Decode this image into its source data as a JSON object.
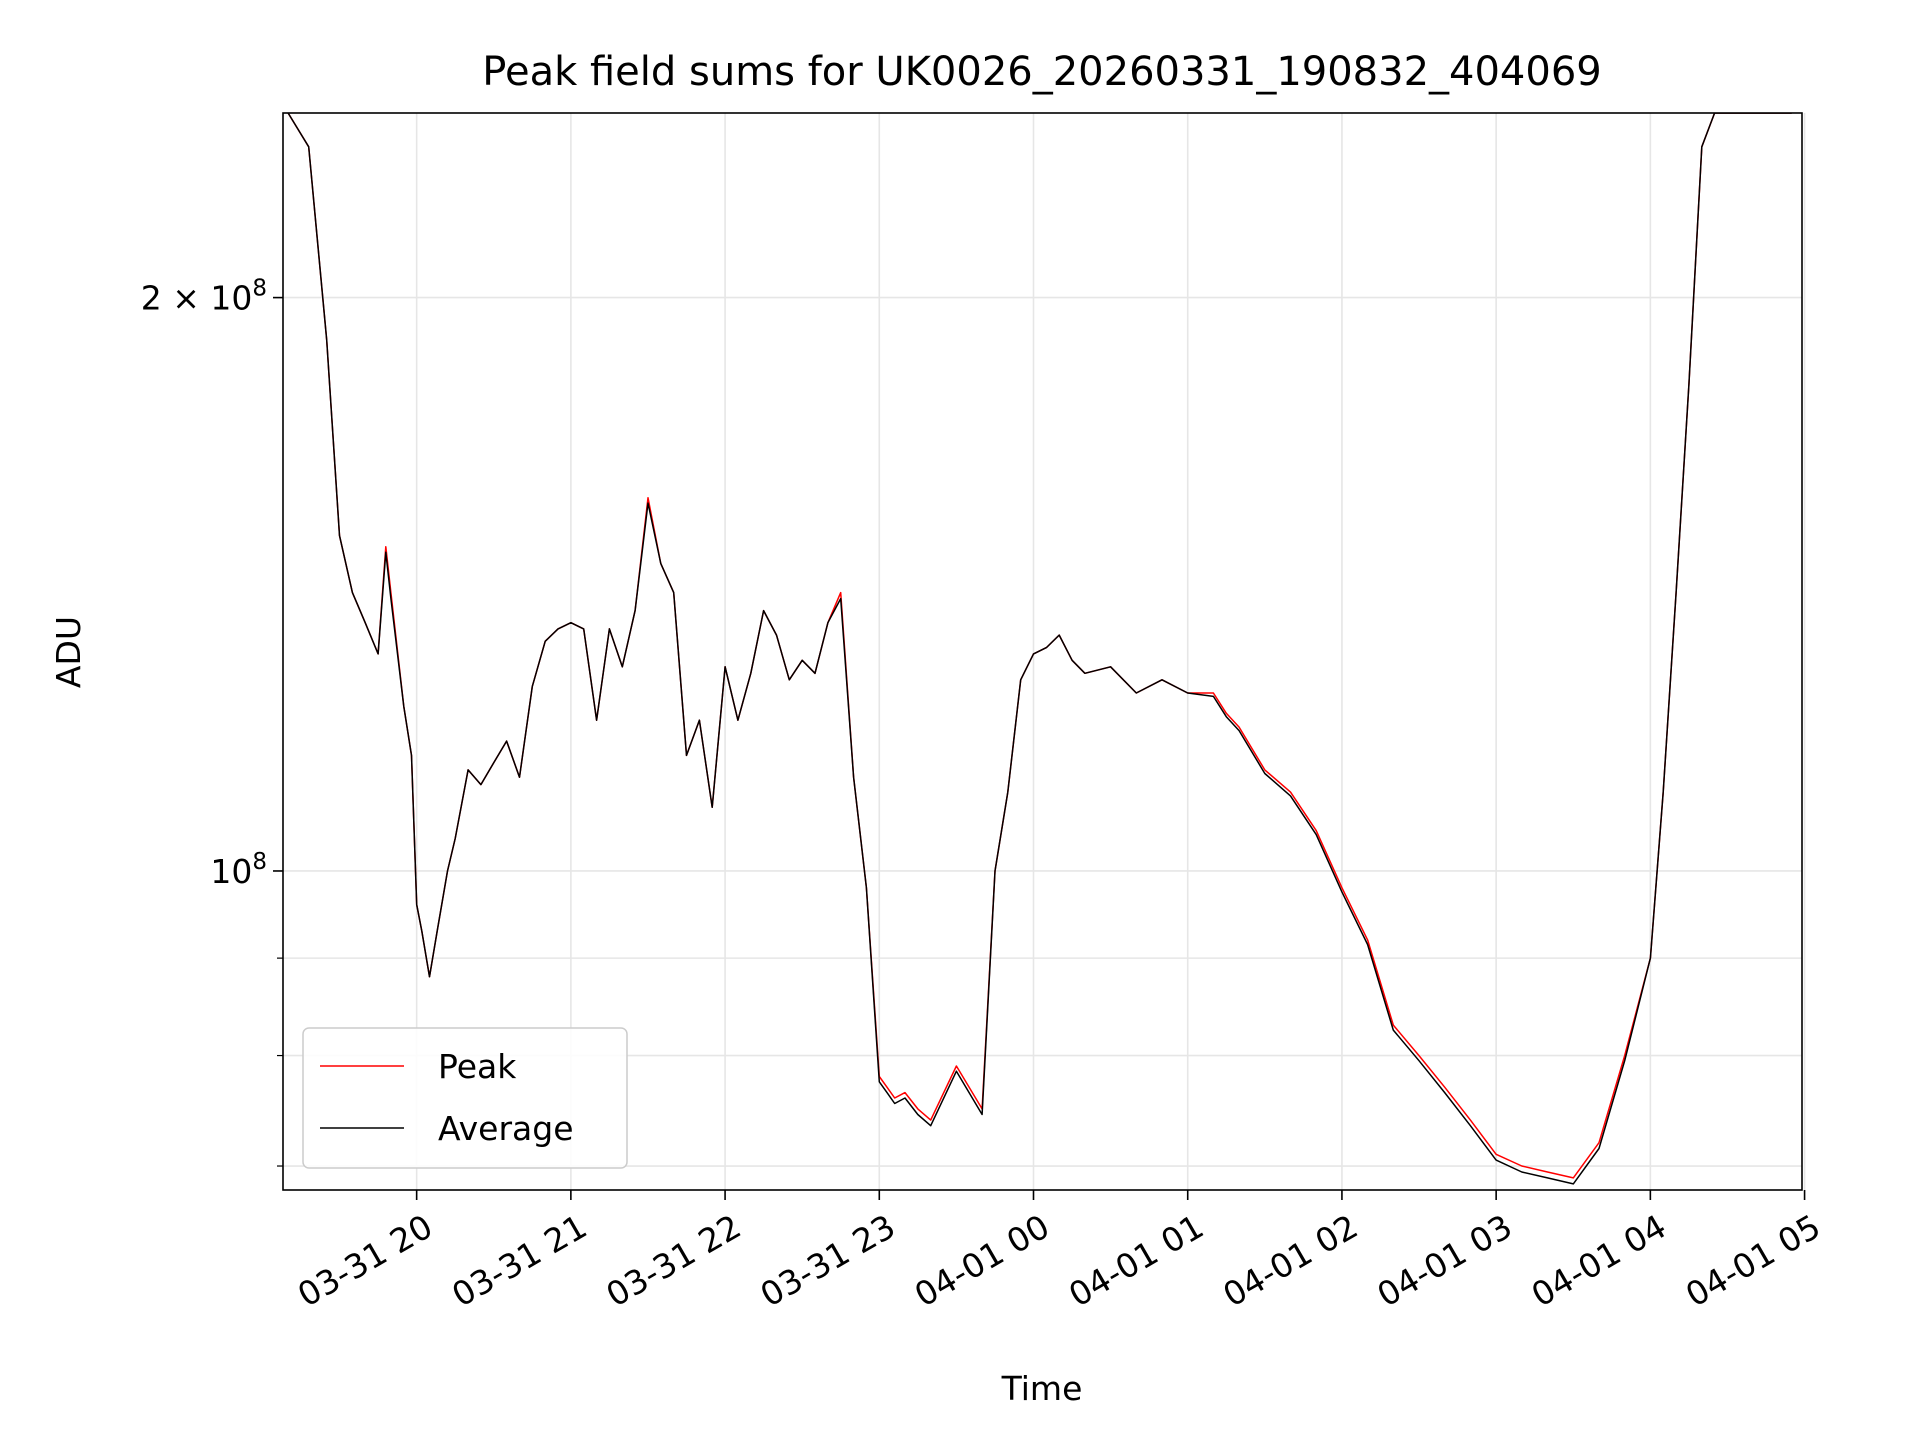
{
  "chart_data": {
    "type": "line",
    "title": "Peak field sums for UK0026_20260331_190832_404069",
    "xlabel": "Time",
    "ylabel": "ADU",
    "yscale": "log",
    "grid": true,
    "legend_position": "lower-left",
    "xlim": [
      "2026-03-31 19:08",
      "2026-04-01 04:59"
    ],
    "ylim": [
      68000000,
      250000000
    ],
    "x_ticks": [
      "03-31 20",
      "03-31 21",
      "03-31 22",
      "03-31 23",
      "04-01 00",
      "04-01 01",
      "04-01 02",
      "04-01 03",
      "04-01 04",
      "04-01 05"
    ],
    "y_ticks": [
      {
        "value": 100000000,
        "label_base": "10",
        "label_exp": "8"
      },
      {
        "value": 200000000,
        "label_base": "2 × 10",
        "label_exp": "8"
      }
    ],
    "y_minor_ticks": [
      70000000,
      80000000,
      90000000
    ],
    "series": [
      {
        "name": "Peak",
        "color": "#ff0000",
        "x": [
          "2026-03-31 19:10",
          "2026-03-31 19:18",
          "2026-03-31 19:25",
          "2026-03-31 19:30",
          "2026-03-31 19:35",
          "2026-03-31 19:40",
          "2026-03-31 19:45",
          "2026-03-31 19:48",
          "2026-03-31 19:50",
          "2026-03-31 19:55",
          "2026-03-31 19:58",
          "2026-03-31 20:00",
          "2026-03-31 20:02",
          "2026-03-31 20:05",
          "2026-03-31 20:08",
          "2026-03-31 20:12",
          "2026-03-31 20:15",
          "2026-03-31 20:20",
          "2026-03-31 20:25",
          "2026-03-31 20:30",
          "2026-03-31 20:35",
          "2026-03-31 20:40",
          "2026-03-31 20:45",
          "2026-03-31 20:50",
          "2026-03-31 20:55",
          "2026-03-31 21:00",
          "2026-03-31 21:05",
          "2026-03-31 21:10",
          "2026-03-31 21:15",
          "2026-03-31 21:20",
          "2026-03-31 21:25",
          "2026-03-31 21:30",
          "2026-03-31 21:35",
          "2026-03-31 21:40",
          "2026-03-31 21:45",
          "2026-03-31 21:50",
          "2026-03-31 21:55",
          "2026-03-31 22:00",
          "2026-03-31 22:05",
          "2026-03-31 22:10",
          "2026-03-31 22:15",
          "2026-03-31 22:20",
          "2026-03-31 22:25",
          "2026-03-31 22:30",
          "2026-03-31 22:35",
          "2026-03-31 22:40",
          "2026-03-31 22:45",
          "2026-03-31 22:50",
          "2026-03-31 22:55",
          "2026-03-31 23:00",
          "2026-03-31 23:03",
          "2026-03-31 23:06",
          "2026-03-31 23:10",
          "2026-03-31 23:15",
          "2026-03-31 23:20",
          "2026-03-31 23:30",
          "2026-03-31 23:40",
          "2026-03-31 23:45",
          "2026-03-31 23:50",
          "2026-03-31 23:55",
          "2026-04-01 00:00",
          "2026-04-01 00:05",
          "2026-04-01 00:10",
          "2026-04-01 00:15",
          "2026-04-01 00:20",
          "2026-04-01 00:30",
          "2026-04-01 00:40",
          "2026-04-01 00:50",
          "2026-04-01 01:00",
          "2026-04-01 01:10",
          "2026-04-01 01:15",
          "2026-04-01 01:20",
          "2026-04-01 01:30",
          "2026-04-01 01:40",
          "2026-04-01 01:50",
          "2026-04-01 02:00",
          "2026-04-01 02:10",
          "2026-04-01 02:20",
          "2026-04-01 02:30",
          "2026-04-01 02:40",
          "2026-04-01 02:50",
          "2026-04-01 03:00",
          "2026-04-01 03:10",
          "2026-04-01 03:20",
          "2026-04-01 03:30",
          "2026-04-01 03:40",
          "2026-04-01 03:50",
          "2026-04-01 04:00",
          "2026-04-01 04:05",
          "2026-04-01 04:10",
          "2026-04-01 04:15",
          "2026-04-01 04:20",
          "2026-04-01 04:25",
          "2026-04-01 04:30",
          "2026-04-01 04:35",
          "2026-04-01 04:40",
          "2026-04-01 04:45",
          "2026-04-01 04:50",
          "2026-04-01 04:55"
        ],
        "y": [
          250000000,
          240000000,
          190000000,
          150000000,
          140000000,
          135000000,
          130000000,
          148000000,
          140000000,
          122000000,
          115000000,
          96000000,
          93000000,
          88000000,
          93000000,
          100000000,
          104000000,
          113000000,
          111000000,
          114000000,
          117000000,
          112000000,
          125000000,
          132000000,
          134000000,
          135000000,
          134000000,
          120000000,
          134000000,
          128000000,
          137000000,
          157000000,
          145000000,
          140000000,
          115000000,
          120000000,
          108000000,
          128000000,
          120000000,
          127000000,
          137000000,
          133000000,
          126000000,
          129000000,
          127000000,
          135000000,
          140000000,
          112000000,
          98000000,
          78000000,
          77000000,
          76000000,
          76500000,
          75000000,
          74000000,
          79000000,
          75000000,
          100000000,
          110000000,
          126000000,
          130000000,
          131000000,
          133000000,
          129000000,
          127000000,
          128000000,
          124000000,
          126000000,
          124000000,
          124000000,
          121000000,
          119000000,
          113000000,
          110000000,
          105000000,
          98000000,
          92000000,
          83000000,
          80000000,
          77000000,
          74000000,
          71000000,
          70000000,
          69500000,
          69000000,
          72000000,
          80000000,
          90000000,
          110000000,
          140000000,
          180000000,
          240000000,
          250000000,
          250000000,
          250000000,
          250000000,
          250000000,
          250000000,
          250000000
        ]
      },
      {
        "name": "Average",
        "color": "#000000",
        "x": [
          "2026-03-31 19:10",
          "2026-03-31 19:18",
          "2026-03-31 19:25",
          "2026-03-31 19:30",
          "2026-03-31 19:35",
          "2026-03-31 19:40",
          "2026-03-31 19:45",
          "2026-03-31 19:48",
          "2026-03-31 19:50",
          "2026-03-31 19:55",
          "2026-03-31 19:58",
          "2026-03-31 20:00",
          "2026-03-31 20:02",
          "2026-03-31 20:05",
          "2026-03-31 20:08",
          "2026-03-31 20:12",
          "2026-03-31 20:15",
          "2026-03-31 20:20",
          "2026-03-31 20:25",
          "2026-03-31 20:30",
          "2026-03-31 20:35",
          "2026-03-31 20:40",
          "2026-03-31 20:45",
          "2026-03-31 20:50",
          "2026-03-31 20:55",
          "2026-03-31 21:00",
          "2026-03-31 21:05",
          "2026-03-31 21:10",
          "2026-03-31 21:15",
          "2026-03-31 21:20",
          "2026-03-31 21:25",
          "2026-03-31 21:30",
          "2026-03-31 21:35",
          "2026-03-31 21:40",
          "2026-03-31 21:45",
          "2026-03-31 21:50",
          "2026-03-31 21:55",
          "2026-03-31 22:00",
          "2026-03-31 22:05",
          "2026-03-31 22:10",
          "2026-03-31 22:15",
          "2026-03-31 22:20",
          "2026-03-31 22:25",
          "2026-03-31 22:30",
          "2026-03-31 22:35",
          "2026-03-31 22:40",
          "2026-03-31 22:45",
          "2026-03-31 22:50",
          "2026-03-31 22:55",
          "2026-03-31 23:00",
          "2026-03-31 23:03",
          "2026-03-31 23:06",
          "2026-03-31 23:10",
          "2026-03-31 23:15",
          "2026-03-31 23:20",
          "2026-03-31 23:30",
          "2026-03-31 23:40",
          "2026-03-31 23:45",
          "2026-03-31 23:50",
          "2026-03-31 23:55",
          "2026-04-01 00:00",
          "2026-04-01 00:05",
          "2026-04-01 00:10",
          "2026-04-01 00:15",
          "2026-04-01 00:20",
          "2026-04-01 00:30",
          "2026-04-01 00:40",
          "2026-04-01 00:50",
          "2026-04-01 01:00",
          "2026-04-01 01:10",
          "2026-04-01 01:15",
          "2026-04-01 01:20",
          "2026-04-01 01:30",
          "2026-04-01 01:40",
          "2026-04-01 01:50",
          "2026-04-01 02:00",
          "2026-04-01 02:10",
          "2026-04-01 02:20",
          "2026-04-01 02:30",
          "2026-04-01 02:40",
          "2026-04-01 02:50",
          "2026-04-01 03:00",
          "2026-04-01 03:10",
          "2026-04-01 03:20",
          "2026-04-01 03:30",
          "2026-04-01 03:40",
          "2026-04-01 03:50",
          "2026-04-01 04:00",
          "2026-04-01 04:05",
          "2026-04-01 04:10",
          "2026-04-01 04:15",
          "2026-04-01 04:20",
          "2026-04-01 04:25",
          "2026-04-01 04:30",
          "2026-04-01 04:35",
          "2026-04-01 04:40",
          "2026-04-01 04:45",
          "2026-04-01 04:50",
          "2026-04-01 04:55"
        ],
        "y": [
          250000000,
          240000000,
          190000000,
          150000000,
          140000000,
          135000000,
          130000000,
          147000000,
          139000000,
          122000000,
          115000000,
          96000000,
          93000000,
          88000000,
          93000000,
          100000000,
          104000000,
          113000000,
          111000000,
          114000000,
          117000000,
          112000000,
          125000000,
          132000000,
          134000000,
          135000000,
          134000000,
          120000000,
          134000000,
          128000000,
          137000000,
          156000000,
          145000000,
          140000000,
          115000000,
          120000000,
          108000000,
          128000000,
          120000000,
          127000000,
          137000000,
          133000000,
          126000000,
          129000000,
          127000000,
          135000000,
          139000000,
          112000000,
          98000000,
          77500000,
          76500000,
          75500000,
          76000000,
          74500000,
          73500000,
          78500000,
          74500000,
          100000000,
          110000000,
          126000000,
          130000000,
          131000000,
          133000000,
          129000000,
          127000000,
          128000000,
          124000000,
          126000000,
          124000000,
          123500000,
          120500000,
          118500000,
          112500000,
          109500000,
          104500000,
          97500000,
          91500000,
          82500000,
          79500000,
          76500000,
          73500000,
          70500000,
          69500000,
          69000000,
          68500000,
          71500000,
          79500000,
          90000000,
          110000000,
          140000000,
          180000000,
          240000000,
          250000000,
          250000000,
          250000000,
          250000000,
          250000000,
          250000000,
          250000000
        ]
      }
    ]
  }
}
